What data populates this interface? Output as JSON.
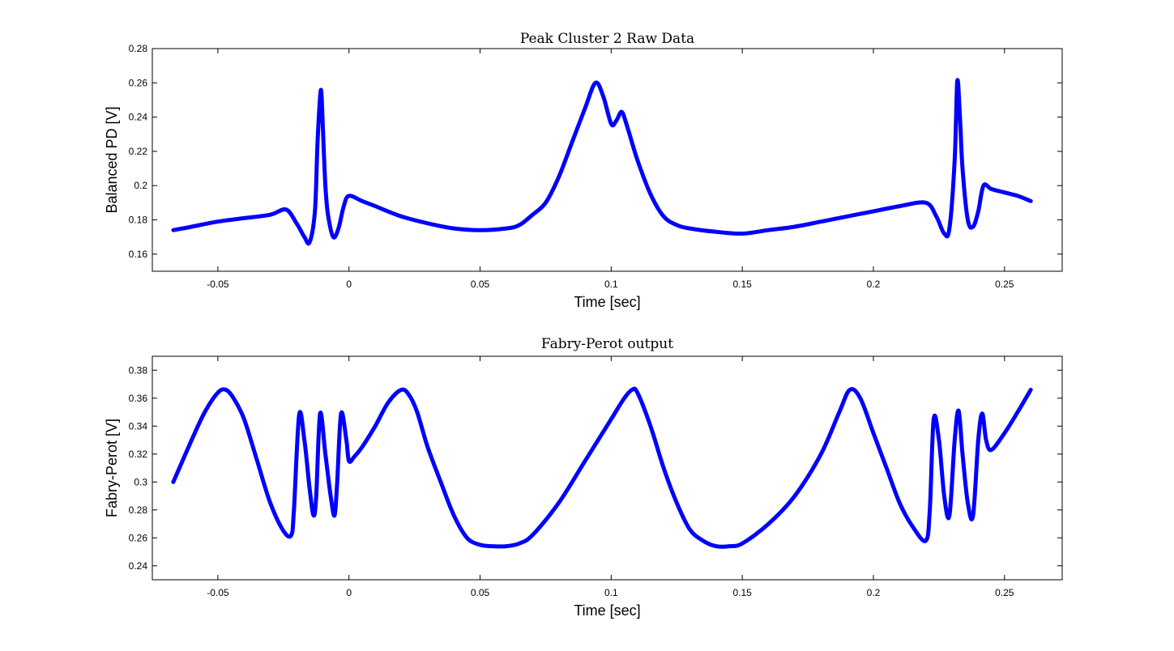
{
  "chart_data": [
    {
      "type": "scatter",
      "title": "Peak Cluster 2 Raw Data",
      "xlabel": "Time [sec]",
      "ylabel": "Balanced PD [V]",
      "xlim": [
        -0.075,
        0.272
      ],
      "ylim": [
        0.15,
        0.28
      ],
      "xticks": [
        -0.05,
        0,
        0.05,
        0.1,
        0.15,
        0.2,
        0.25
      ],
      "xtick_labels": [
        "-0.05",
        "0",
        "0.05",
        "0.1",
        "0.15",
        "0.2",
        "0.25"
      ],
      "yticks": [
        0.16,
        0.18,
        0.2,
        0.22,
        0.24,
        0.26,
        0.28
      ],
      "ytick_labels": [
        "0.16",
        "0.18",
        "0.2",
        "0.22",
        "0.24",
        "0.26",
        "0.28"
      ],
      "grid": false,
      "series": [
        {
          "color": "#0000ff",
          "marker": "dot",
          "x": [
            -0.067,
            -0.06,
            -0.05,
            -0.04,
            -0.03,
            -0.024,
            -0.02,
            -0.017,
            -0.015,
            -0.013,
            -0.012,
            -0.011,
            -0.0105,
            -0.01,
            -0.009,
            -0.008,
            -0.006,
            -0.004,
            -0.002,
            0,
            0.005,
            0.01,
            0.02,
            0.03,
            0.04,
            0.05,
            0.06,
            0.065,
            0.07,
            0.075,
            0.08,
            0.085,
            0.09,
            0.094,
            0.097,
            0.1,
            0.102,
            0.104,
            0.106,
            0.11,
            0.115,
            0.12,
            0.125,
            0.13,
            0.14,
            0.15,
            0.16,
            0.17,
            0.18,
            0.19,
            0.2,
            0.21,
            0.22,
            0.224,
            0.227,
            0.229,
            0.231,
            0.232,
            0.233,
            0.234,
            0.236,
            0.238,
            0.24,
            0.242,
            0.245,
            0.25,
            0.255,
            0.26
          ],
          "y": [
            0.174,
            0.176,
            0.179,
            0.181,
            0.183,
            0.186,
            0.178,
            0.17,
            0.167,
            0.185,
            0.225,
            0.252,
            0.254,
            0.235,
            0.2,
            0.183,
            0.17,
            0.175,
            0.188,
            0.194,
            0.191,
            0.188,
            0.182,
            0.178,
            0.175,
            0.174,
            0.175,
            0.177,
            0.183,
            0.19,
            0.205,
            0.225,
            0.245,
            0.26,
            0.252,
            0.236,
            0.238,
            0.243,
            0.235,
            0.215,
            0.195,
            0.182,
            0.177,
            0.175,
            0.173,
            0.172,
            0.174,
            0.176,
            0.179,
            0.182,
            0.185,
            0.188,
            0.19,
            0.182,
            0.172,
            0.175,
            0.215,
            0.261,
            0.24,
            0.21,
            0.18,
            0.176,
            0.185,
            0.2,
            0.198,
            0.196,
            0.194,
            0.191
          ]
        }
      ]
    },
    {
      "type": "scatter",
      "title": "Fabry-Perot output",
      "xlabel": "Time [sec]",
      "ylabel": "Fabry-Perot [V]",
      "xlim": [
        -0.075,
        0.272
      ],
      "ylim": [
        0.23,
        0.39
      ],
      "xticks": [
        -0.05,
        0,
        0.05,
        0.1,
        0.15,
        0.2,
        0.25
      ],
      "xtick_labels": [
        "-0.05",
        "0",
        "0.05",
        "0.1",
        "0.15",
        "0.2",
        "0.25"
      ],
      "yticks": [
        0.24,
        0.26,
        0.28,
        0.3,
        0.32,
        0.34,
        0.36,
        0.38
      ],
      "ytick_labels": [
        "0.24",
        "0.26",
        "0.28",
        "0.3",
        "0.32",
        "0.34",
        "0.36",
        "0.38"
      ],
      "grid": false,
      "series": [
        {
          "color": "#0000ff",
          "marker": "dot",
          "x": [
            -0.067,
            -0.06,
            -0.055,
            -0.05,
            -0.047,
            -0.044,
            -0.04,
            -0.035,
            -0.03,
            -0.025,
            -0.022,
            -0.021,
            -0.019,
            -0.017,
            -0.015,
            -0.0135,
            -0.0125,
            -0.011,
            -0.009,
            -0.007,
            -0.0055,
            -0.0045,
            -0.003,
            -0.001,
            0,
            0.002,
            0.005,
            0.01,
            0.015,
            0.02,
            0.023,
            0.026,
            0.03,
            0.035,
            0.04,
            0.045,
            0.05,
            0.055,
            0.06,
            0.065,
            0.07,
            0.08,
            0.09,
            0.1,
            0.105,
            0.108,
            0.11,
            0.115,
            0.12,
            0.125,
            0.13,
            0.135,
            0.14,
            0.145,
            0.15,
            0.16,
            0.17,
            0.18,
            0.187,
            0.191,
            0.195,
            0.2,
            0.205,
            0.21,
            0.215,
            0.22,
            0.2215,
            0.223,
            0.225,
            0.227,
            0.229,
            0.231,
            0.2325,
            0.234,
            0.236,
            0.238,
            0.24,
            0.2415,
            0.243,
            0.245,
            0.25,
            0.255,
            0.26
          ],
          "y": [
            0.3,
            0.33,
            0.35,
            0.364,
            0.366,
            0.36,
            0.345,
            0.315,
            0.285,
            0.265,
            0.262,
            0.28,
            0.348,
            0.33,
            0.295,
            0.276,
            0.29,
            0.349,
            0.32,
            0.29,
            0.276,
            0.3,
            0.349,
            0.33,
            0.315,
            0.318,
            0.325,
            0.34,
            0.357,
            0.366,
            0.362,
            0.35,
            0.325,
            0.3,
            0.276,
            0.26,
            0.255,
            0.254,
            0.254,
            0.256,
            0.262,
            0.285,
            0.315,
            0.345,
            0.36,
            0.366,
            0.364,
            0.34,
            0.31,
            0.285,
            0.266,
            0.258,
            0.254,
            0.254,
            0.256,
            0.27,
            0.29,
            0.32,
            0.35,
            0.366,
            0.36,
            0.335,
            0.31,
            0.285,
            0.268,
            0.258,
            0.28,
            0.345,
            0.33,
            0.29,
            0.276,
            0.33,
            0.351,
            0.32,
            0.285,
            0.276,
            0.33,
            0.349,
            0.33,
            0.323,
            0.335,
            0.35,
            0.366
          ]
        }
      ]
    }
  ]
}
